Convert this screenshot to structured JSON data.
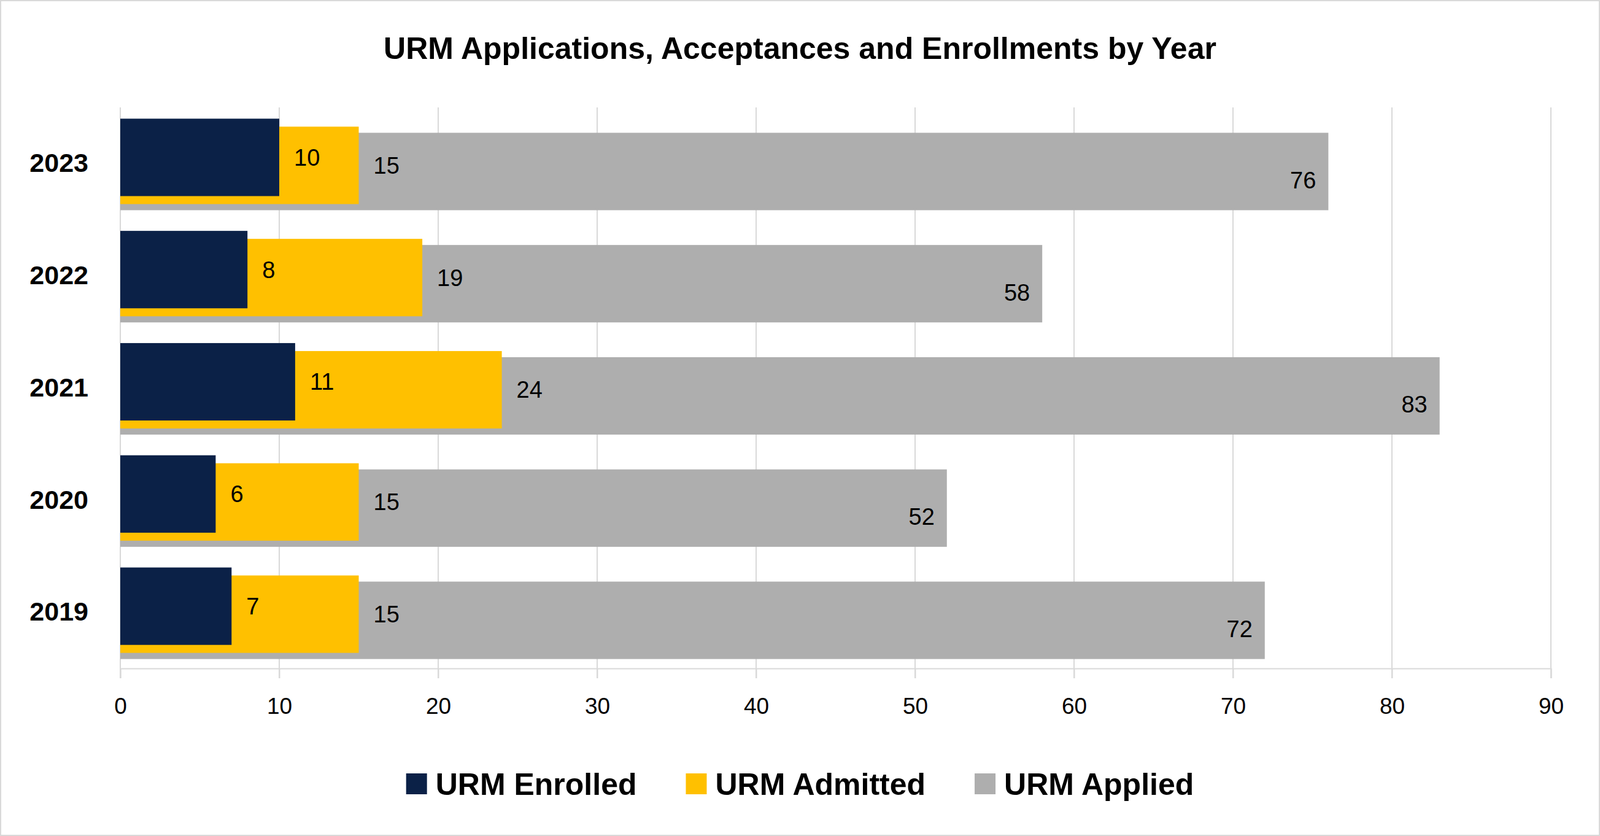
{
  "chart_data": {
    "type": "bar",
    "title": "URM Applications, Acceptances and Enrollments by Year",
    "orientation": "horizontal",
    "stacked": false,
    "data_labels": true,
    "grid": true,
    "legend": "bottom",
    "categories": [
      "2019",
      "2020",
      "2021",
      "2022",
      "2023"
    ],
    "series": [
      {
        "name": "URM Enrolled",
        "color": "#0b2147",
        "values": [
          7,
          6,
          11,
          8,
          10
        ]
      },
      {
        "name": "URM Admitted",
        "color": "#ffc000",
        "values": [
          15,
          15,
          24,
          19,
          15
        ]
      },
      {
        "name": "URM Applied",
        "color": "#aeaeae",
        "values": [
          72,
          52,
          83,
          58,
          76
        ]
      }
    ],
    "xlim": [
      0,
      90
    ],
    "xticks": [
      0,
      10,
      20,
      30,
      40,
      50,
      60,
      70,
      80,
      90
    ]
  }
}
